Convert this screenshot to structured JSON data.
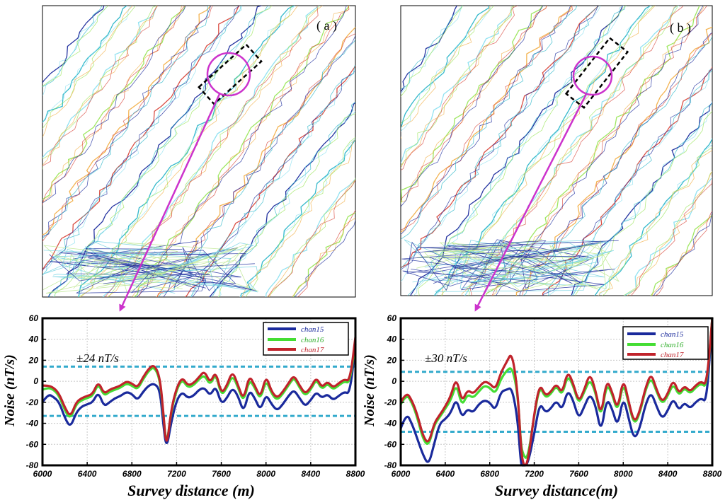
{
  "figure": {
    "panel_labels": [
      "( a )",
      "( b )"
    ]
  },
  "colors": {
    "chan15": "#1a2a9c",
    "chan16": "#44dd33",
    "chan17": "#c0232b",
    "threshold": "#33aacc",
    "highlight": "#cc33cc",
    "grid": "#c8c8c8"
  },
  "chart_data": [
    {
      "type": "line",
      "panel": "a",
      "title": "",
      "xlabel": "Survey distance (m)",
      "ylabel": "Noise (nT/s)",
      "xlim": [
        6000,
        8800
      ],
      "ylim": [
        -80,
        60
      ],
      "xticks": [
        6000,
        6400,
        6800,
        7200,
        7600,
        8000,
        8400,
        8800
      ],
      "yticks": [
        60,
        40,
        20,
        0,
        -20,
        -40,
        -60,
        -80
      ],
      "annotation": "±24 nT/s",
      "thresholds": [
        14,
        -33
      ],
      "legend": [
        "chan15",
        "chan16",
        "chan17"
      ],
      "x": [
        6000,
        6050,
        6100,
        6150,
        6200,
        6250,
        6300,
        6350,
        6400,
        6450,
        6500,
        6550,
        6600,
        6650,
        6700,
        6750,
        6800,
        6850,
        6900,
        6950,
        7000,
        7050,
        7080,
        7110,
        7150,
        7200,
        7250,
        7300,
        7350,
        7400,
        7450,
        7500,
        7550,
        7600,
        7650,
        7700,
        7750,
        7800,
        7850,
        7900,
        7950,
        8000,
        8050,
        8100,
        8150,
        8200,
        8250,
        8300,
        8350,
        8400,
        8450,
        8500,
        8550,
        8600,
        8650,
        8700,
        8750,
        8800
      ],
      "series": [
        {
          "name": "chan15",
          "values": [
            -20,
            -12,
            -15,
            -20,
            -35,
            -44,
            -30,
            -24,
            -22,
            -20,
            -10,
            -24,
            -20,
            -16,
            -14,
            -10,
            -12,
            -18,
            -10,
            -4,
            -2,
            -8,
            -40,
            -65,
            -40,
            -18,
            -10,
            -16,
            -14,
            -8,
            -6,
            -14,
            -4,
            -22,
            -16,
            -6,
            -14,
            -30,
            -8,
            -16,
            -28,
            -12,
            -22,
            -28,
            -22,
            -14,
            -8,
            -16,
            -24,
            -18,
            -10,
            -16,
            -12,
            -18,
            -14,
            -10,
            -12,
            35
          ]
        },
        {
          "name": "chan16",
          "values": [
            -8,
            -6,
            -8,
            -14,
            -28,
            -36,
            -22,
            -18,
            -16,
            -14,
            -2,
            -14,
            -10,
            -8,
            -6,
            -2,
            -4,
            -8,
            2,
            10,
            14,
            2,
            -30,
            -63,
            -30,
            -8,
            2,
            -6,
            -4,
            2,
            6,
            -4,
            8,
            -14,
            -6,
            6,
            -6,
            -20,
            2,
            -6,
            -18,
            2,
            -12,
            -18,
            -12,
            -4,
            4,
            -6,
            -14,
            -8,
            2,
            -8,
            -2,
            -8,
            -4,
            0,
            -2,
            38
          ]
        },
        {
          "name": "chan17",
          "values": [
            -4,
            -4,
            -6,
            -12,
            -25,
            -34,
            -20,
            -16,
            -14,
            -12,
            0,
            -12,
            -8,
            -6,
            -4,
            0,
            -2,
            -6,
            4,
            12,
            16,
            4,
            -28,
            -66,
            -28,
            -6,
            4,
            -4,
            -2,
            4,
            10,
            -2,
            10,
            -12,
            -4,
            10,
            -4,
            -18,
            6,
            -4,
            -16,
            6,
            -10,
            -16,
            -10,
            -2,
            6,
            -4,
            -12,
            -6,
            4,
            -6,
            0,
            -6,
            -2,
            2,
            0,
            42
          ]
        }
      ]
    },
    {
      "type": "line",
      "panel": "b",
      "title": "",
      "xlabel": "Survey distance(m)",
      "ylabel": "Noise (nT/s)",
      "xlim": [
        6000,
        8800
      ],
      "ylim": [
        -80,
        60
      ],
      "xticks": [
        6000,
        6400,
        6800,
        7200,
        7600,
        8000,
        8400,
        8800
      ],
      "yticks": [
        60,
        40,
        20,
        0,
        -20,
        -40,
        -60,
        -80
      ],
      "annotation": "±30 nT/s",
      "thresholds": [
        9,
        -48
      ],
      "legend": [
        "chan15",
        "chan16",
        "chan17"
      ],
      "x": [
        6000,
        6050,
        6100,
        6150,
        6200,
        6250,
        6300,
        6350,
        6400,
        6450,
        6500,
        6550,
        6600,
        6650,
        6700,
        6750,
        6800,
        6850,
        6900,
        6950,
        7000,
        7050,
        7080,
        7100,
        7140,
        7200,
        7250,
        7300,
        7350,
        7400,
        7450,
        7500,
        7550,
        7600,
        7650,
        7700,
        7750,
        7800,
        7850,
        7900,
        7950,
        8000,
        8050,
        8100,
        8150,
        8200,
        8250,
        8300,
        8350,
        8400,
        8450,
        8500,
        8550,
        8600,
        8650,
        8700,
        8750,
        8800
      ],
      "series": [
        {
          "name": "chan15",
          "values": [
            -45,
            -30,
            -40,
            -55,
            -70,
            -80,
            -60,
            -40,
            -36,
            -30,
            -16,
            -35,
            -26,
            -30,
            -22,
            -18,
            -20,
            -28,
            -10,
            -8,
            -6,
            -35,
            -80,
            -80,
            -80,
            -50,
            -20,
            -30,
            -26,
            -18,
            -28,
            -8,
            -18,
            -36,
            -24,
            -12,
            -22,
            -50,
            -16,
            -26,
            -44,
            -14,
            -36,
            -56,
            -44,
            -22,
            -10,
            -24,
            -36,
            -28,
            -16,
            -28,
            -20,
            -26,
            -20,
            -16,
            -20,
            60
          ]
        },
        {
          "name": "chan16",
          "values": [
            -22,
            -12,
            -20,
            -35,
            -55,
            -62,
            -42,
            -34,
            -26,
            -18,
            -2,
            -24,
            -12,
            -16,
            -10,
            -4,
            -6,
            -12,
            2,
            10,
            14,
            -10,
            -60,
            -70,
            -75,
            -32,
            -4,
            -16,
            -12,
            -4,
            -14,
            6,
            -4,
            -22,
            -10,
            2,
            -10,
            -36,
            -2,
            -12,
            -30,
            0,
            -22,
            -42,
            -30,
            -8,
            4,
            -10,
            -22,
            -14,
            -2,
            -14,
            -6,
            -12,
            -6,
            -2,
            -6,
            60
          ]
        },
        {
          "name": "chan17",
          "values": [
            -20,
            -10,
            -18,
            -32,
            -52,
            -60,
            -40,
            -32,
            -24,
            -14,
            4,
            -20,
            -8,
            -12,
            -6,
            0,
            -2,
            -8,
            8,
            18,
            28,
            -8,
            -62,
            -80,
            -80,
            -30,
            -2,
            -14,
            -10,
            -2,
            -12,
            10,
            -2,
            -20,
            -8,
            8,
            -8,
            -34,
            2,
            -10,
            -28,
            4,
            -20,
            -40,
            -28,
            -6,
            8,
            -8,
            -20,
            -12,
            2,
            -12,
            -4,
            -10,
            -4,
            0,
            -4,
            60
          ]
        }
      ]
    }
  ]
}
